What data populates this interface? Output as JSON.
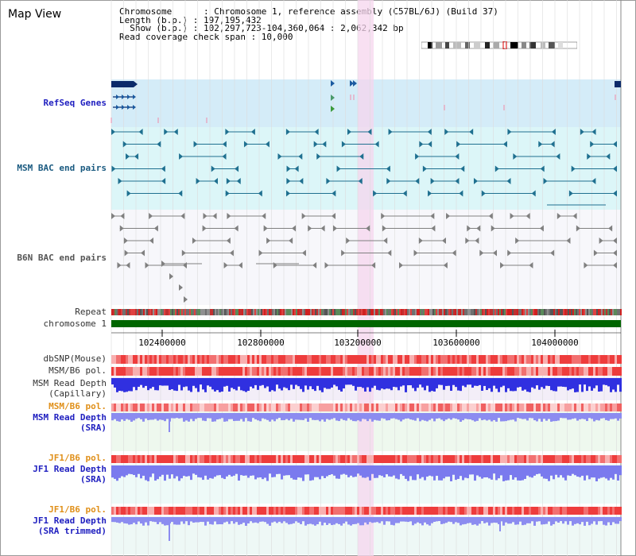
{
  "header": {
    "title": "Map View",
    "info_lines": [
      "Chromosome      : Chromosome 1, reference assembly (C57BL/6J) (Build 37)",
      "Length (b.p.) : 197,195,432",
      "  Show (b.p.) : 102,297,723-104,360,064 : 2,062,342 bp",
      "Read coverage check span : 10,000"
    ]
  },
  "tracks": {
    "refseq": "RefSeq Genes",
    "msm_bac": "MSM BAC end pairs",
    "b6n_bac": "B6N BAC end pairs",
    "repeat": "Repeat",
    "chromosome": "chromosome 1",
    "dbsnp": "dbSNP(Mouse)",
    "msm_pol": "MSM/B6 pol.",
    "msm_depth_cap_1": "MSM Read Depth",
    "msm_depth_cap_2": "(Capillary)",
    "msm_pol2": "MSM/B6 pol.",
    "msm_depth_sra_1": "MSM Read Depth",
    "msm_depth_sra_2": "(SRA)",
    "jf1_pol": "JF1/B6 pol.",
    "jf1_depth_sra_1": "JF1 Read Depth",
    "jf1_depth_sra_2": "(SRA)",
    "jf1_pol2": "JF1/B6 pol.",
    "jf1_depth_trim_1": "JF1 Read Depth",
    "jf1_depth_trim_2": "(SRA trimmed)"
  },
  "axis": {
    "ticks": [
      "102400000",
      "102800000",
      "103200000",
      "103600000",
      "104000000"
    ]
  },
  "colors": {
    "refseq_bg": "#d4ecf8",
    "msm_bg": "#dcf6f8",
    "b6n_bg": "#f7f7fb",
    "highlight": "#f6d6ee",
    "chromosome_bar": "#006600",
    "depth_blue": "#3030e0",
    "depth_light": "#8c8cf0",
    "pol_red": "#ee4444"
  }
}
